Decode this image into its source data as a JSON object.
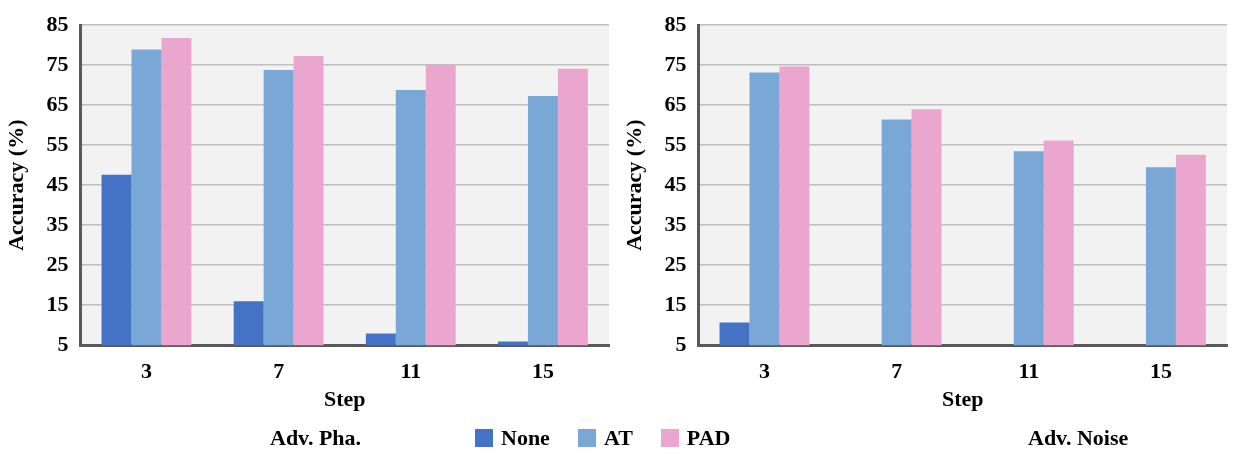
{
  "chart_data": [
    {
      "type": "bar",
      "title": "Adv. Pha.",
      "xlabel": "Step",
      "ylabel": "Accuracy (%)",
      "categories": [
        "3",
        "7",
        "11",
        "15"
      ],
      "series": [
        {
          "name": "None",
          "color": "#4472c4",
          "values": [
            47.6,
            16.0,
            7.9,
            5.9
          ]
        },
        {
          "name": "AT",
          "color": "#7aa8d6",
          "values": [
            78.9,
            73.8,
            68.8,
            67.3
          ]
        },
        {
          "name": "PAD",
          "color": "#eaa6cf",
          "values": [
            81.8,
            77.3,
            75.1,
            74.1
          ]
        }
      ],
      "ylim": [
        5,
        85
      ],
      "yticks": [
        5,
        15,
        25,
        35,
        45,
        55,
        65,
        75,
        85
      ],
      "grid": "y",
      "legend": "bottom"
    },
    {
      "type": "bar",
      "title": "Adv. Noise",
      "xlabel": "Step",
      "ylabel": "Accuracy (%)",
      "categories": [
        "3",
        "7",
        "11",
        "15"
      ],
      "series": [
        {
          "color": "#4472c4",
          "values": [
            10.7,
            null,
            null,
            null
          ]
        },
        {
          "color": "#7aa8d6",
          "values": [
            73.2,
            61.4,
            53.5,
            49.5
          ]
        },
        {
          "color": "#eaa6cf",
          "values": [
            74.7,
            64.0,
            56.2,
            52.6
          ]
        }
      ],
      "ylim": [
        5,
        85
      ],
      "yticks": [
        5,
        15,
        25,
        35,
        45,
        55,
        65,
        75,
        85
      ],
      "grid": "y"
    }
  ]
}
